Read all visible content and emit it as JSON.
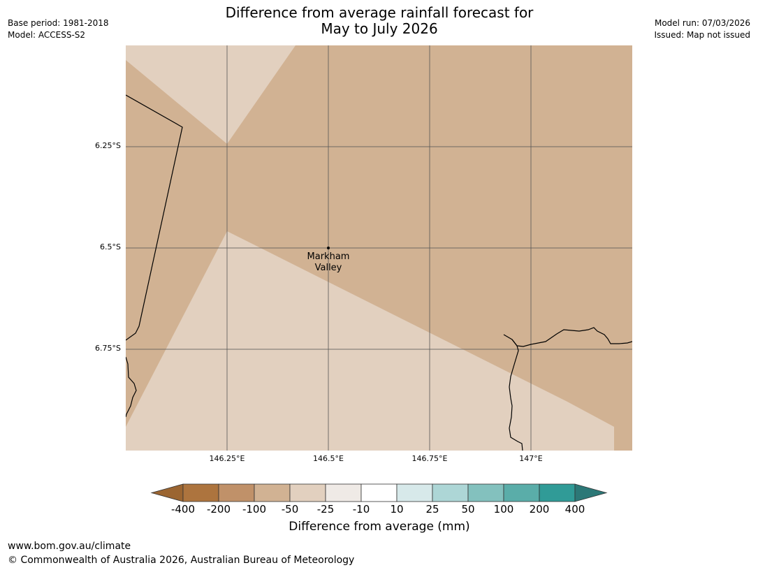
{
  "title": {
    "line1": "Difference from average rainfall forecast for",
    "line2": "May to July 2026"
  },
  "meta_left": {
    "base_period": "Base period: 1981-2018",
    "model": "Model: ACCESS-S2"
  },
  "meta_right": {
    "model_run": "Model run: 07/03/2026",
    "issued": "Issued: Map not issued"
  },
  "map": {
    "lat_labels": [
      "6.25°S",
      "6.5°S",
      "6.75°S"
    ],
    "lon_labels": [
      "146.25°E",
      "146.5°E",
      "146.75°E",
      "147°E"
    ],
    "place": {
      "name_line1": "Markham",
      "name_line2": "Valley"
    },
    "region_colors": {
      "category_-100_to_-50": "#d1b293",
      "category_-50_to_-25": "#e2d0bf"
    }
  },
  "colorbar": {
    "title": "Difference from average (mm)",
    "ticks": [
      "-400",
      "-200",
      "-100",
      "-50",
      "-25",
      "-10",
      "10",
      "25",
      "50",
      "100",
      "200",
      "400"
    ],
    "colors": [
      "#9b6531",
      "#ad743e",
      "#c09169",
      "#d1b293",
      "#e2d0bf",
      "#efeae6",
      "#ffffff",
      "#d7e9ea",
      "#add6d6",
      "#83c1be",
      "#5aada9",
      "#309b97",
      "#2c7877"
    ]
  },
  "footer": {
    "url": "www.bom.gov.au/climate",
    "copyright": "© Commonwealth of Australia 2026, Australian Bureau of Meteorology"
  }
}
